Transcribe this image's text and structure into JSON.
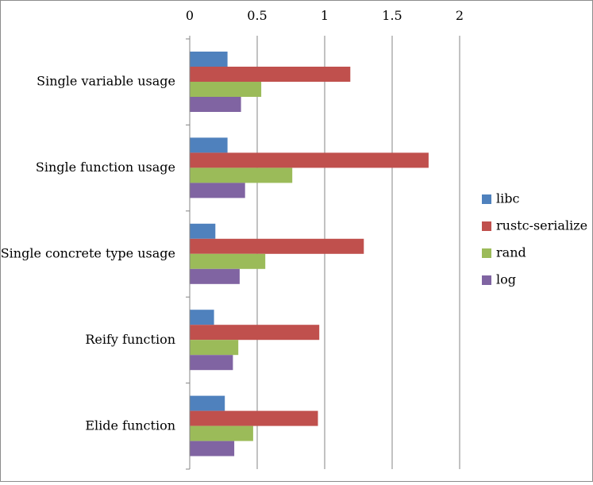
{
  "chart_data": {
    "type": "bar",
    "orientation": "horizontal",
    "categories": [
      "Single variable usage",
      "Single function usage",
      "Single concrete type usage",
      "Reify function",
      "Elide function"
    ],
    "series": [
      {
        "name": "libc",
        "color": "#4f81bd",
        "values": [
          0.28,
          0.28,
          0.19,
          0.18,
          0.26
        ]
      },
      {
        "name": "rustc-serialize",
        "color": "#c0504d",
        "values": [
          1.19,
          1.77,
          1.29,
          0.96,
          0.95
        ]
      },
      {
        "name": "rand",
        "color": "#9bbb59",
        "values": [
          0.53,
          0.76,
          0.56,
          0.36,
          0.47
        ]
      },
      {
        "name": "log",
        "color": "#8064a2",
        "values": [
          0.38,
          0.41,
          0.37,
          0.32,
          0.33
        ]
      }
    ],
    "xlim": [
      0,
      2
    ],
    "xticks": [
      "0",
      "0.5",
      "1",
      "1.5",
      "2"
    ],
    "xaxis_position": "top",
    "grid": true,
    "legend_position": "right"
  }
}
